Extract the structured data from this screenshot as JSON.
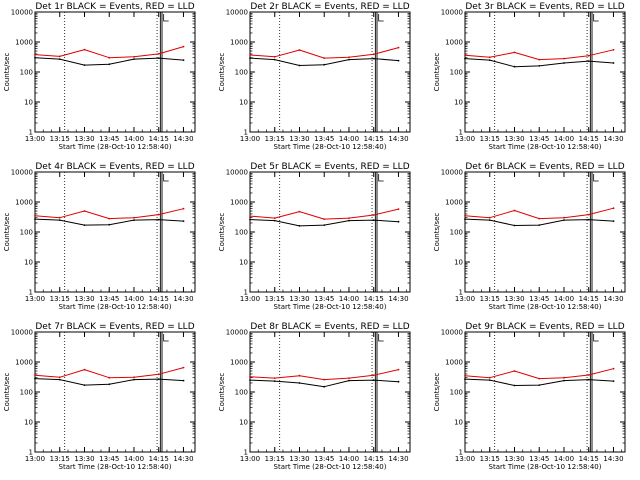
{
  "colors": {
    "events": "#000000",
    "lld": "#e00000",
    "background": "#ffffff"
  },
  "chart_data": [
    {
      "type": "line",
      "title": "Det 1r BLACK = Events, RED = LLD",
      "xlabel": "Start Time (28-Oct-10 12:58:40)",
      "ylabel": "Counts/sec",
      "x": [
        "13:00",
        "13:15",
        "13:30",
        "13:45",
        "14:00",
        "14:15",
        "14:30"
      ],
      "xticks": [
        "13:00",
        "13:15",
        "13:30",
        "13:45",
        "14:00",
        "14:15",
        "14:30"
      ],
      "yticks": [
        "1",
        "10",
        "100",
        "1000",
        "10000"
      ],
      "ylim": [
        1,
        10000
      ],
      "yscale": "log",
      "series": [
        {
          "name": "Events",
          "values": [
            300,
            270,
            170,
            180,
            270,
            290,
            250
          ]
        },
        {
          "name": "LLD",
          "values": [
            380,
            330,
            560,
            300,
            320,
            400,
            700
          ]
        }
      ]
    },
    {
      "type": "line",
      "title": "Det 2r BLACK = Events, RED = LLD",
      "xlabel": "Start Time (28-Oct-10 12:58:40)",
      "ylabel": "Counts/sec",
      "x": [
        "13:00",
        "13:15",
        "13:30",
        "13:45",
        "14:00",
        "14:15",
        "14:30"
      ],
      "xticks": [
        "13:00",
        "13:15",
        "13:30",
        "13:45",
        "14:00",
        "14:15",
        "14:30"
      ],
      "yticks": [
        "1",
        "10",
        "100",
        "1000",
        "10000"
      ],
      "ylim": [
        1,
        10000
      ],
      "yscale": "log",
      "series": [
        {
          "name": "Events",
          "values": [
            290,
            260,
            165,
            175,
            260,
            280,
            240
          ]
        },
        {
          "name": "LLD",
          "values": [
            370,
            320,
            540,
            290,
            310,
            390,
            650
          ]
        }
      ]
    },
    {
      "type": "line",
      "title": "Det 3r BLACK = Events, RED = LLD",
      "xlabel": "Start Time (28-Oct-10 12:58:40)",
      "ylabel": "Counts/sec",
      "x": [
        "13:00",
        "13:15",
        "13:30",
        "13:45",
        "14:00",
        "14:15",
        "14:30"
      ],
      "xticks": [
        "13:00",
        "13:15",
        "13:30",
        "13:45",
        "14:00",
        "14:15",
        "14:30"
      ],
      "yticks": [
        "1",
        "10",
        "100",
        "1000",
        "10000"
      ],
      "ylim": [
        1,
        10000
      ],
      "yscale": "log",
      "series": [
        {
          "name": "Events",
          "values": [
            280,
            250,
            150,
            160,
            200,
            230,
            200
          ]
        },
        {
          "name": "LLD",
          "values": [
            360,
            310,
            450,
            260,
            280,
            350,
            550
          ]
        }
      ]
    },
    {
      "type": "line",
      "title": "Det 4r BLACK = Events, RED = LLD",
      "xlabel": "Start Time (28-Oct-10 12:58:40)",
      "ylabel": "Counts/sec",
      "x": [
        "13:00",
        "13:15",
        "13:30",
        "13:45",
        "14:00",
        "14:15",
        "14:30"
      ],
      "xticks": [
        "13:00",
        "13:15",
        "13:30",
        "13:45",
        "14:00",
        "14:15",
        "14:30"
      ],
      "yticks": [
        "1",
        "10",
        "100",
        "1000",
        "10000"
      ],
      "ylim": [
        1,
        10000
      ],
      "yscale": "log",
      "series": [
        {
          "name": "Events",
          "values": [
            270,
            250,
            170,
            175,
            250,
            260,
            230
          ]
        },
        {
          "name": "LLD",
          "values": [
            350,
            300,
            500,
            280,
            300,
            380,
            600
          ]
        }
      ]
    },
    {
      "type": "line",
      "title": "Det 5r BLACK = Events, RED = LLD",
      "xlabel": "Start Time (28-Oct-10 12:58:40)",
      "ylabel": "Counts/sec",
      "x": [
        "13:00",
        "13:15",
        "13:30",
        "13:45",
        "14:00",
        "14:15",
        "14:30"
      ],
      "xticks": [
        "13:00",
        "13:15",
        "13:30",
        "13:45",
        "14:00",
        "14:15",
        "14:30"
      ],
      "yticks": [
        "1",
        "10",
        "100",
        "1000",
        "10000"
      ],
      "ylim": [
        1,
        10000
      ],
      "yscale": "log",
      "series": [
        {
          "name": "Events",
          "values": [
            260,
            240,
            160,
            170,
            240,
            250,
            220
          ]
        },
        {
          "name": "LLD",
          "values": [
            340,
            290,
            480,
            270,
            290,
            370,
            580
          ]
        }
      ]
    },
    {
      "type": "line",
      "title": "Det 6r BLACK = Events, RED = LLD",
      "xlabel": "Start Time (28-Oct-10 12:58:40)",
      "ylabel": "Counts/sec",
      "x": [
        "13:00",
        "13:15",
        "13:30",
        "13:45",
        "14:00",
        "14:15",
        "14:30"
      ],
      "xticks": [
        "13:00",
        "13:15",
        "13:30",
        "13:45",
        "14:00",
        "14:15",
        "14:30"
      ],
      "yticks": [
        "1",
        "10",
        "100",
        "1000",
        "10000"
      ],
      "ylim": [
        1,
        10000
      ],
      "yscale": "log",
      "series": [
        {
          "name": "Events",
          "values": [
            270,
            250,
            165,
            170,
            250,
            260,
            230
          ]
        },
        {
          "name": "LLD",
          "values": [
            350,
            300,
            520,
            280,
            300,
            380,
            620
          ]
        }
      ]
    },
    {
      "type": "line",
      "title": "Det 7r BLACK = Events, RED = LLD",
      "xlabel": "Start Time (28-Oct-10 12:58:40)",
      "ylabel": "Counts/sec",
      "x": [
        "13:00",
        "13:15",
        "13:30",
        "13:45",
        "14:00",
        "14:15",
        "14:30"
      ],
      "xticks": [
        "13:00",
        "13:15",
        "13:30",
        "13:45",
        "14:00",
        "14:15",
        "14:30"
      ],
      "yticks": [
        "1",
        "10",
        "100",
        "1000",
        "10000"
      ],
      "ylim": [
        1,
        10000
      ],
      "yscale": "log",
      "series": [
        {
          "name": "Events",
          "values": [
            280,
            260,
            170,
            180,
            260,
            270,
            240
          ]
        },
        {
          "name": "LLD",
          "values": [
            360,
            310,
            560,
            300,
            310,
            390,
            650
          ]
        }
      ]
    },
    {
      "type": "line",
      "title": "Det 8r BLACK = Events, RED = LLD",
      "xlabel": "Start Time (28-Oct-10 12:58:40)",
      "ylabel": "Counts/sec",
      "x": [
        "13:00",
        "13:15",
        "13:30",
        "13:45",
        "14:00",
        "14:15",
        "14:30"
      ],
      "xticks": [
        "13:00",
        "13:15",
        "13:30",
        "13:45",
        "14:00",
        "14:15",
        "14:30"
      ],
      "yticks": [
        "1",
        "10",
        "100",
        "1000",
        "10000"
      ],
      "ylim": [
        1,
        10000
      ],
      "yscale": "log",
      "series": [
        {
          "name": "Events",
          "values": [
            250,
            230,
            200,
            150,
            240,
            250,
            220
          ]
        },
        {
          "name": "LLD",
          "values": [
            320,
            290,
            350,
            260,
            290,
            360,
            560
          ]
        }
      ]
    },
    {
      "type": "line",
      "title": "Det 9r BLACK = Events, RED = LLD",
      "xlabel": "Start Time (28-Oct-10 12:58:40)",
      "ylabel": "Counts/sec",
      "x": [
        "13:00",
        "13:15",
        "13:30",
        "13:45",
        "14:00",
        "14:15",
        "14:30"
      ],
      "xticks": [
        "13:00",
        "13:15",
        "13:30",
        "13:45",
        "14:00",
        "14:15",
        "14:30"
      ],
      "yticks": [
        "1",
        "10",
        "100",
        "1000",
        "10000"
      ],
      "ylim": [
        1,
        10000
      ],
      "yscale": "log",
      "series": [
        {
          "name": "Events",
          "values": [
            270,
            250,
            165,
            170,
            240,
            260,
            230
          ]
        },
        {
          "name": "LLD",
          "values": [
            350,
            300,
            500,
            280,
            300,
            370,
            600
          ]
        }
      ]
    }
  ]
}
